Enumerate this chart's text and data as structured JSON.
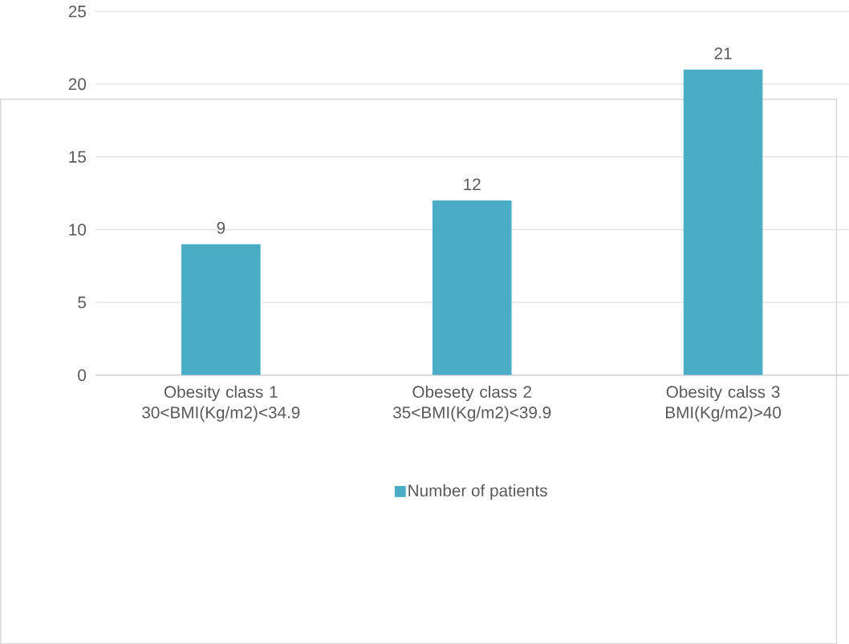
{
  "chart_data": {
    "type": "bar",
    "categories": [
      "Obesity class  1 30<BMI(Kg/m2)<34.9",
      "Obesety class 2 35<BMI(Kg/m2)<39.9",
      "Obesity calss 3 BMI(Kg/m2)>40"
    ],
    "series": [
      {
        "name": "Number of patients",
        "color": "#4bacc6",
        "values": [
          9,
          12,
          21
        ]
      }
    ],
    "ylim": [
      0,
      25
    ],
    "yticks": [
      0,
      5,
      10,
      15,
      20,
      25
    ],
    "grid": "y",
    "legend": "bottom",
    "data_labels": true
  }
}
